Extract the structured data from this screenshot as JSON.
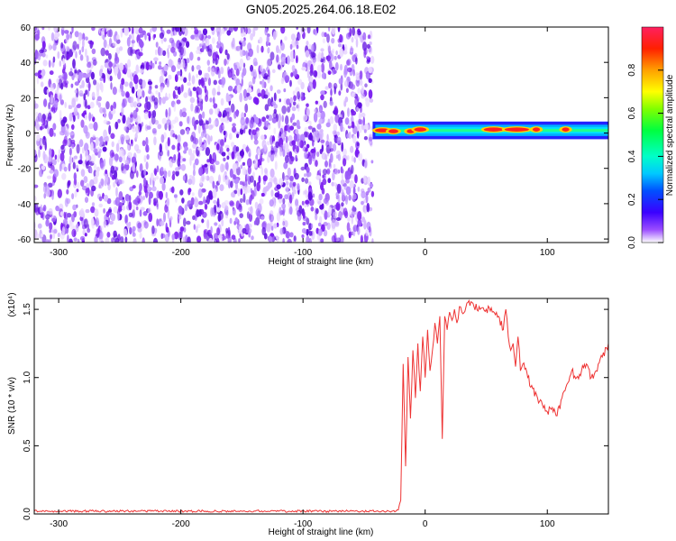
{
  "title": "GN05.2025.264.06.18.E02",
  "chart_data": [
    {
      "type": "heatmap",
      "xlabel": "Height of straight line (km)",
      "ylabel": "Frequency (Hz)",
      "xlim": [
        -320,
        150
      ],
      "ylim": [
        -62,
        60
      ],
      "x_ticks": [
        -300,
        -200,
        -100,
        0,
        100
      ],
      "y_ticks": [
        -60,
        -40,
        -20,
        0,
        20,
        40,
        60
      ],
      "noise_region_x": [
        -320,
        -43
      ],
      "blank_region_x": [
        -43,
        150
      ],
      "signal_band": {
        "x": [
          -43,
          150
        ],
        "center_hz": 1.5,
        "halfwidth_hz": 4
      },
      "hot_spots": [
        {
          "x": -35,
          "f": 1.5,
          "w": 6
        },
        {
          "x": -26,
          "f": 1,
          "w": 4
        },
        {
          "x": -12,
          "f": 1,
          "w": 3
        },
        {
          "x": -4,
          "f": 2,
          "w": 5
        },
        {
          "x": 56,
          "f": 2,
          "w": 8
        },
        {
          "x": 75,
          "f": 2,
          "w": 10
        },
        {
          "x": 91,
          "f": 2,
          "w": 3
        },
        {
          "x": 115,
          "f": 2,
          "w": 3
        }
      ],
      "colorbar": {
        "label": "Normalized spectral amplitude",
        "range": [
          0,
          1
        ],
        "ticks": [
          "0.0",
          "0.2",
          "0.4",
          "0.6",
          "0.8"
        ],
        "tick_values": [
          0,
          0.2,
          0.4,
          0.6,
          0.8
        ]
      },
      "colors": {
        "noise": "#7a1cf0",
        "band_edge": "#2222ff",
        "band": "#00e0ff",
        "peak": "#ff2020"
      }
    },
    {
      "type": "line",
      "xlabel": "Height of straight line (km)",
      "ylabel": "SNR (10 * v/v)",
      "y_multiplier": "(x10⁴)",
      "xlim": [
        -320,
        150
      ],
      "ylim": [
        0,
        1.58
      ],
      "x_ticks": [
        -300,
        -200,
        -100,
        0,
        100
      ],
      "y_ticks": [
        "0.0",
        "0.5",
        "1.0",
        "1.5"
      ],
      "y_tick_values": [
        0,
        0.5,
        1.0,
        1.5
      ],
      "color": "#ee3333",
      "x": [
        -320,
        -300,
        -280,
        -260,
        -240,
        -220,
        -200,
        -180,
        -160,
        -140,
        -120,
        -100,
        -80,
        -60,
        -40,
        -30,
        -24,
        -22,
        -20,
        -18,
        -16,
        -14,
        -12,
        -10,
        -8,
        -6,
        -4,
        -2,
        0,
        2,
        4,
        6,
        8,
        10,
        12,
        14,
        16,
        18,
        20,
        22,
        24,
        26,
        28,
        30,
        35,
        40,
        45,
        50,
        55,
        60,
        64,
        66,
        68,
        70,
        72,
        74,
        76,
        78,
        80,
        84,
        88,
        92,
        96,
        100,
        104,
        108,
        112,
        116,
        120,
        124,
        128,
        132,
        136,
        140,
        145,
        150
      ],
      "y": [
        0.02,
        0.02,
        0.021,
        0.02,
        0.022,
        0.021,
        0.02,
        0.021,
        0.02,
        0.022,
        0.02,
        0.021,
        0.02,
        0.021,
        0.02,
        0.021,
        0.02,
        0.03,
        0.1,
        1.1,
        0.35,
        1.15,
        0.7,
        1.2,
        0.85,
        1.25,
        0.9,
        1.3,
        1.0,
        1.35,
        1.05,
        1.2,
        1.4,
        1.25,
        1.45,
        0.55,
        1.45,
        1.35,
        1.48,
        1.42,
        1.5,
        1.4,
        1.52,
        1.48,
        1.55,
        1.52,
        1.5,
        1.5,
        1.48,
        1.45,
        1.35,
        1.5,
        1.3,
        1.2,
        1.25,
        1.08,
        1.3,
        1.05,
        1.1,
        1.0,
        0.92,
        0.85,
        0.8,
        0.75,
        0.78,
        0.72,
        0.85,
        0.95,
        1.05,
        1.0,
        1.05,
        1.1,
        1.0,
        1.05,
        1.15,
        1.25
      ]
    }
  ]
}
